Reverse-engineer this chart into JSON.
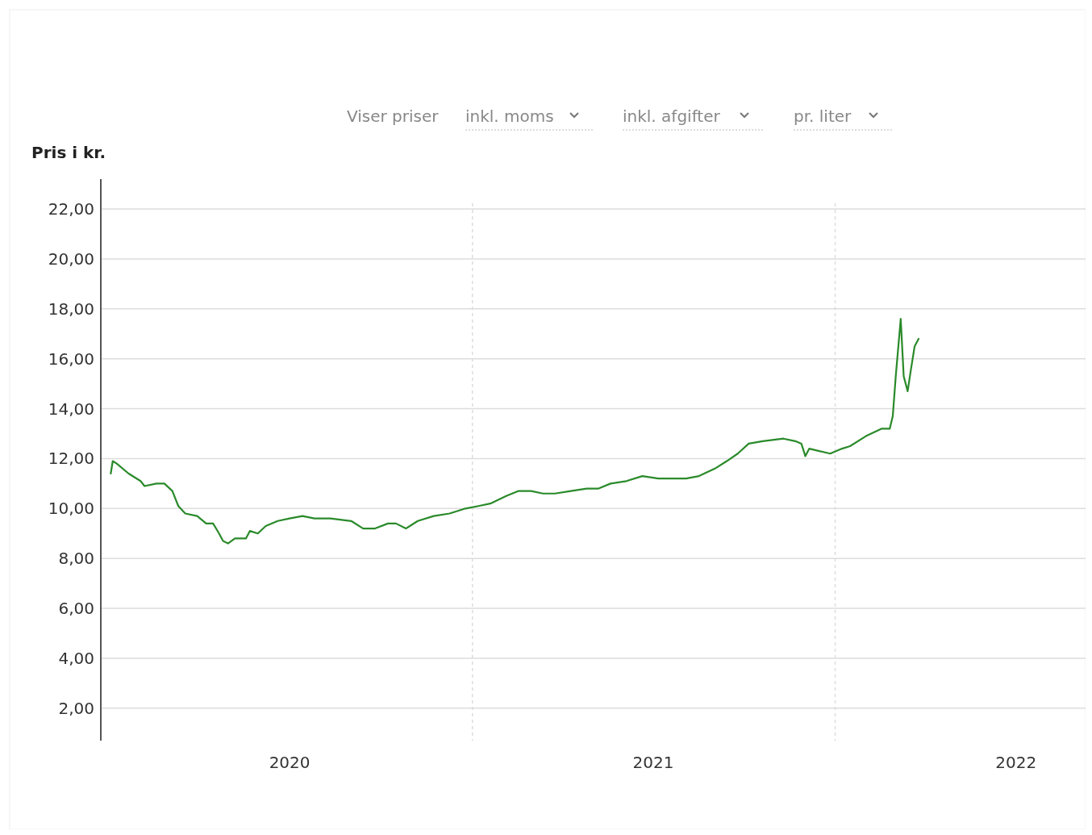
{
  "chart_data": {
    "type": "line",
    "ylabel": "Pris i kr.",
    "annotations": [
      "Viser priser",
      "inkl. moms",
      "inkl. afgifter",
      "pr. liter"
    ],
    "x": [
      "2020-01-03",
      "2020-01-05",
      "2020-01-09",
      "2020-01-21",
      "2020-02-02",
      "2020-02-06",
      "2020-02-18",
      "2020-02-26",
      "2020-03-05",
      "2020-03-11",
      "2020-03-18",
      "2020-03-30",
      "2020-04-08",
      "2020-04-15",
      "2020-04-21",
      "2020-04-25",
      "2020-04-30",
      "2020-05-07",
      "2020-05-18",
      "2020-05-22",
      "2020-05-30",
      "2020-06-07",
      "2020-06-19",
      "2020-07-01",
      "2020-07-14",
      "2020-07-26",
      "2020-08-11",
      "2020-09-01",
      "2020-09-13",
      "2020-09-25",
      "2020-10-08",
      "2020-10-16",
      "2020-10-26",
      "2020-11-07",
      "2020-11-23",
      "2020-12-09",
      "2020-12-25",
      "2021-01-07",
      "2021-01-19",
      "2021-02-04",
      "2021-02-16",
      "2021-03-01",
      "2021-03-13",
      "2021-03-25",
      "2021-04-10",
      "2021-04-26",
      "2021-05-08",
      "2021-05-20",
      "2021-06-05",
      "2021-06-21",
      "2021-07-07",
      "2021-07-23",
      "2021-08-04",
      "2021-08-17",
      "2021-09-02",
      "2021-09-14",
      "2021-09-25",
      "2021-10-06",
      "2021-10-20",
      "2021-11-10",
      "2021-11-22",
      "2021-11-28",
      "2021-12-02",
      "2021-12-06",
      "2021-12-16",
      "2021-12-27",
      "2022-01-08",
      "2022-01-16",
      "2022-02-01",
      "2022-02-17",
      "2022-02-25",
      "2022-02-28",
      "2022-03-03",
      "2022-03-08",
      "2022-03-11",
      "2022-03-15",
      "2022-03-18",
      "2022-03-22",
      "2022-03-26"
    ],
    "series": [
      {
        "color": "#2a8a2a",
        "values": [
          11.4,
          11.9,
          11.8,
          11.4,
          11.1,
          10.9,
          11.0,
          11.0,
          10.7,
          10.1,
          9.8,
          9.7,
          9.4,
          9.4,
          9.0,
          8.7,
          8.6,
          8.8,
          8.8,
          9.1,
          9.0,
          9.3,
          9.5,
          9.6,
          9.7,
          9.6,
          9.6,
          9.5,
          9.2,
          9.2,
          9.4,
          9.4,
          9.2,
          9.5,
          9.7,
          9.8,
          10.0,
          10.1,
          10.2,
          10.5,
          10.7,
          10.7,
          10.6,
          10.6,
          10.7,
          10.8,
          10.8,
          11.0,
          11.1,
          11.3,
          11.2,
          11.2,
          11.2,
          11.3,
          11.6,
          11.9,
          12.2,
          12.6,
          12.7,
          12.8,
          12.7,
          12.6,
          12.1,
          12.4,
          12.3,
          12.2,
          12.4,
          12.5,
          12.9,
          13.2,
          13.2,
          13.7,
          15.3,
          17.6,
          15.3,
          14.7,
          15.5,
          16.5,
          16.8
        ]
      }
    ],
    "xlim": [
      "2019-12-24",
      "2022-09-10"
    ],
    "xticks": [
      {
        "value": "2020-07-01",
        "label": "2020"
      },
      {
        "value": "2021-07-02",
        "label": "2021"
      },
      {
        "value": "2022-07-02",
        "label": "2022"
      }
    ],
    "ylim": [
      0.7,
      23.2
    ],
    "yticks": [
      {
        "value": 2,
        "label": "2,00"
      },
      {
        "value": 4,
        "label": "4,00"
      },
      {
        "value": 6,
        "label": "6,00"
      },
      {
        "value": 8,
        "label": "8,00"
      },
      {
        "value": 10,
        "label": "10,00"
      },
      {
        "value": 12,
        "label": "12,00"
      },
      {
        "value": 14,
        "label": "14,00"
      },
      {
        "value": 16,
        "label": "16,00"
      },
      {
        "value": 18,
        "label": "18,00"
      },
      {
        "value": 20,
        "label": "20,00"
      },
      {
        "value": 22,
        "label": "22,00"
      }
    ],
    "ref_lines": [
      {
        "axis": "x",
        "value": "2021-01-01",
        "color": "#dddddd",
        "line_style": "dashed"
      },
      {
        "axis": "x",
        "value": "2022-01-01",
        "color": "#dddddd",
        "line_style": "dashed"
      }
    ],
    "grid": "y",
    "line_style": "solid",
    "marker": "none"
  }
}
